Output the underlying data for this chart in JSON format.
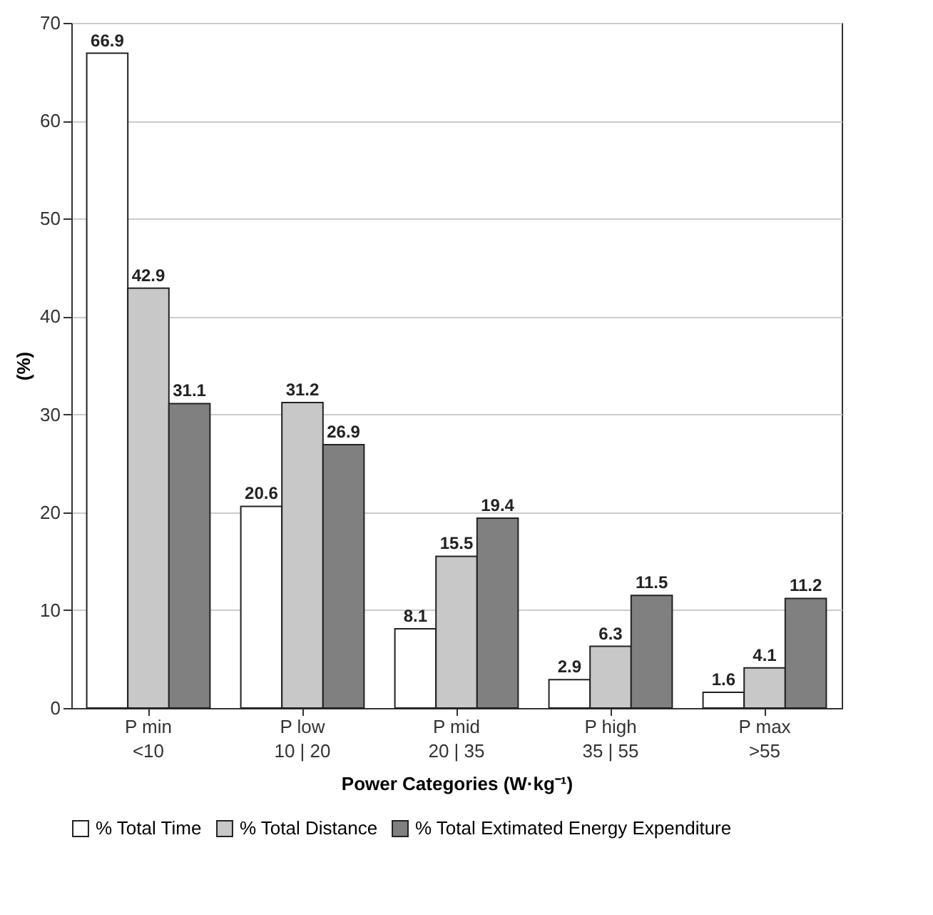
{
  "chart_data": {
    "type": "bar",
    "xlabel": "Power Categories (W·kg⁻¹)",
    "ylabel": "(%)",
    "categories": [
      "P min\n<10",
      "P low\n10 | 20",
      "P mid\n20 | 35",
      "P high\n35 | 55",
      "P max\n>55"
    ],
    "series": [
      {
        "name": "% Total Time",
        "color": "#ffffff",
        "values": [
          66.9,
          20.6,
          8.1,
          2.9,
          1.6
        ]
      },
      {
        "name": "% Total Distance",
        "color": "#c8c8c8",
        "values": [
          42.9,
          31.2,
          15.5,
          6.3,
          4.1
        ]
      },
      {
        "name": "% Total Extimated Energy Expenditure",
        "color": "#808080",
        "values": [
          31.1,
          26.9,
          19.4,
          11.5,
          11.2
        ]
      }
    ],
    "ylim": [
      0,
      70
    ],
    "yticks": [
      0,
      10,
      20,
      30,
      40,
      50,
      60,
      70
    ],
    "grid": "y",
    "legend": "bottom",
    "data_labels": true
  }
}
